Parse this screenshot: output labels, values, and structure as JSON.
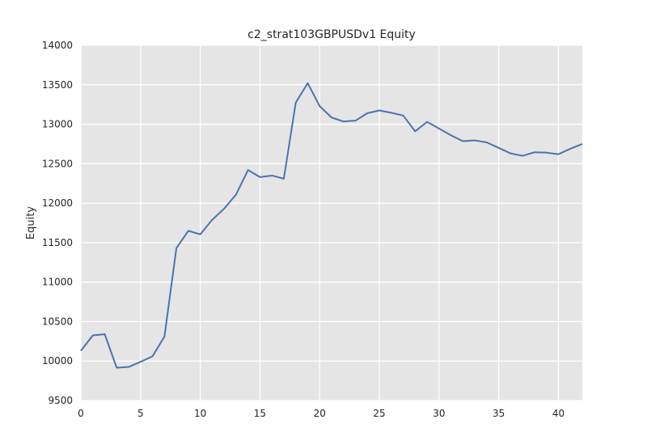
{
  "chart_data": {
    "type": "line",
    "title": "c2_strat103GBPUSDv1 Equity",
    "xlabel": "",
    "ylabel": "Equity",
    "xlim": [
      0,
      42
    ],
    "ylim": [
      9500,
      14000
    ],
    "x_ticks": [
      0,
      5,
      10,
      15,
      20,
      25,
      30,
      35,
      40
    ],
    "y_ticks": [
      9500,
      10000,
      10500,
      11000,
      11500,
      12000,
      12500,
      13000,
      13500,
      14000
    ],
    "grid": true,
    "background": "#e5e5e5",
    "grid_color": "#ffffff",
    "series": [
      {
        "color": "#4c72b0",
        "x": [
          0,
          1,
          2,
          3,
          4,
          5,
          6,
          7,
          8,
          9,
          10,
          11,
          12,
          13,
          14,
          15,
          16,
          17,
          18,
          19,
          20,
          21,
          22,
          23,
          24,
          25,
          26,
          27,
          28,
          29,
          30,
          31,
          32,
          33,
          34,
          35,
          36,
          37,
          38,
          39,
          40,
          41,
          42
        ],
        "values": [
          10130,
          10325,
          10340,
          9915,
          9925,
          9990,
          10060,
          10310,
          11430,
          11650,
          11605,
          11790,
          11930,
          12110,
          12420,
          12330,
          12350,
          12310,
          13275,
          13520,
          13230,
          13085,
          13035,
          13045,
          13140,
          13175,
          13145,
          13110,
          12910,
          13030,
          12945,
          12860,
          12785,
          12795,
          12770,
          12700,
          12630,
          12600,
          12645,
          12640,
          12620,
          12690,
          12750
        ]
      }
    ]
  }
}
